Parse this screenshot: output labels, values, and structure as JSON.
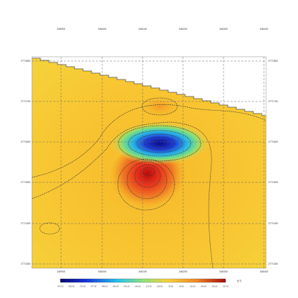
{
  "map": {
    "x_labels": [
      "345900",
      "346000",
      "346100",
      "346200",
      "346300",
      "346400"
    ],
    "y_labels": [
      "2771800",
      "2771700",
      "2771600",
      "2771500",
      "2771400",
      "2771300"
    ],
    "colorbar": {
      "labels": [
        "-972.00",
        "-820.00",
        "-712.00",
        "-577.00",
        "-486.00",
        "-400.00",
        "-320.00",
        "-245.00",
        "-170.00",
        "-100.00",
        "-30.00",
        "40.00",
        "110.00",
        "180.00",
        "250.00",
        "337.00"
      ],
      "unit": "(nT)"
    }
  }
}
